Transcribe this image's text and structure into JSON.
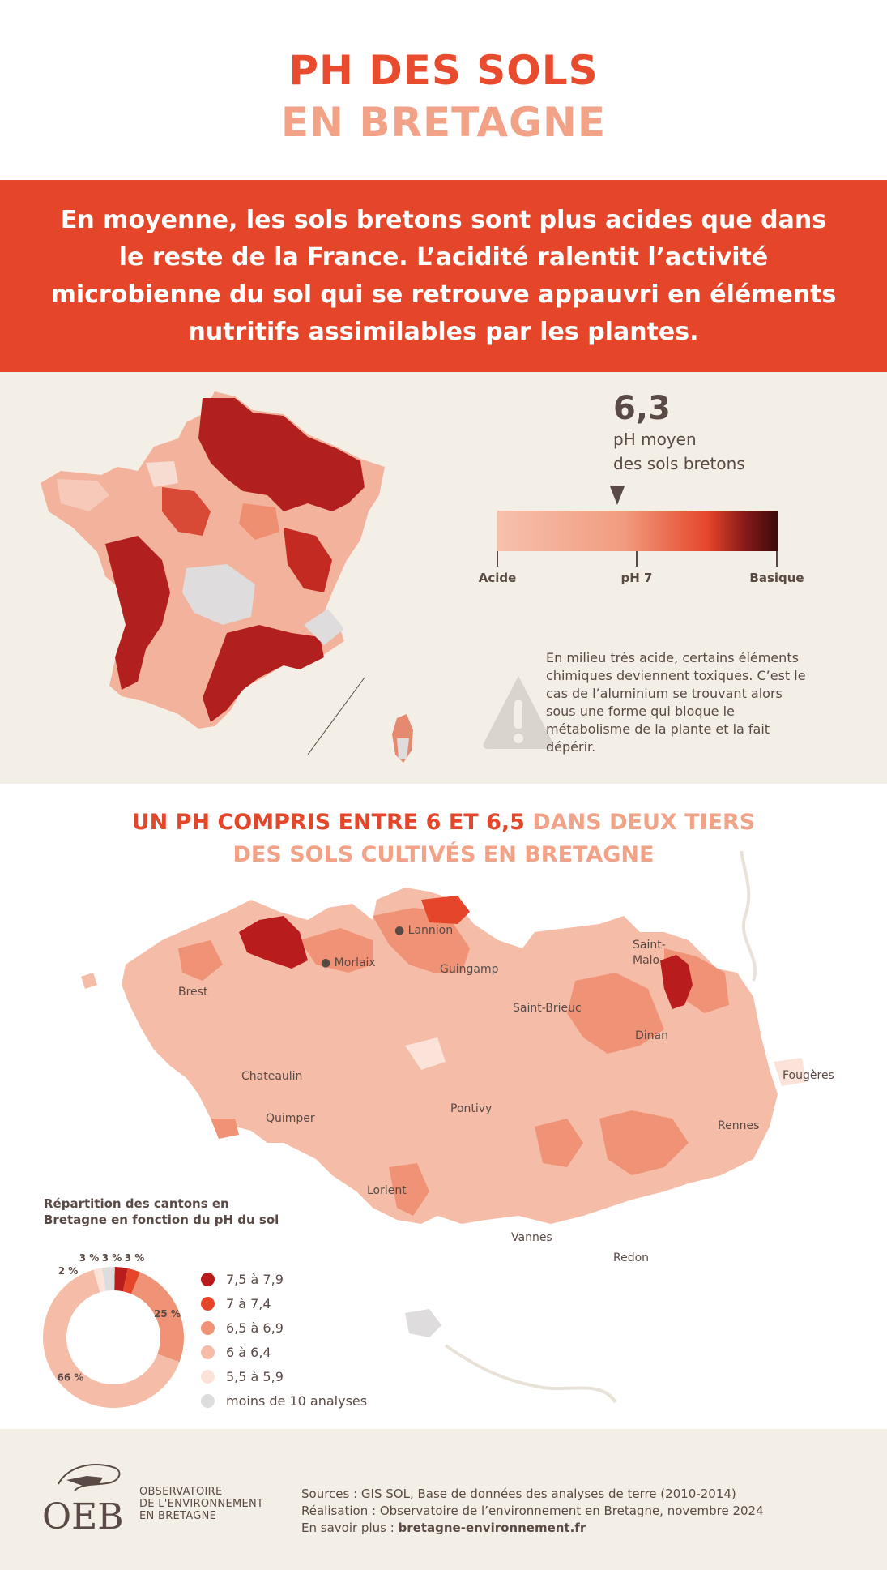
{
  "title": {
    "line1": "PH DES SOLS",
    "line2": "EN BRETAGNE"
  },
  "banner": {
    "text": "En moyenne, les sols bretons sont plus acides que dans le reste de la France. L’acidité ralentit l’activité microbienne du sol qui se retrouve appauvri en éléments nutritifs assimilables par les plantes."
  },
  "ph_scale": {
    "value": "6,3",
    "label_line1": "pH moyen",
    "label_line2": "des sols bretons",
    "tick_left": "Acide",
    "tick_mid": "pH 7",
    "tick_right": "Basique"
  },
  "warning": {
    "text": "En milieu très acide, certains éléments chimiques deviennent toxiques. C’est le cas de l’aluminium se trouvant alors sous une forme qui bloque le métabolisme de la plante et la fait dépérir."
  },
  "section2": {
    "title_red": "UN PH COMPRIS ENTRE 6 ET 6,5",
    "title_salmon_1": " DANS DEUX TIERS",
    "title_salmon_2": "DES SOLS CULTIVÉS EN BRETAGNE"
  },
  "cities": [
    {
      "name": "Lannion"
    },
    {
      "name": "Morlaix"
    },
    {
      "name": "Guingamp"
    },
    {
      "name": "Saint-"
    },
    {
      "name": "Malo"
    },
    {
      "name": "Brest"
    },
    {
      "name": "Saint-Brieuc"
    },
    {
      "name": "Dinan"
    },
    {
      "name": "Chateaulin"
    },
    {
      "name": "Fougères"
    },
    {
      "name": "Pontivy"
    },
    {
      "name": "Quimper"
    },
    {
      "name": "Rennes"
    },
    {
      "name": "Lorient"
    },
    {
      "name": "Vannes"
    },
    {
      "name": "Redon"
    }
  ],
  "chart_data": {
    "type": "pie",
    "title": "Répartition des cantons en Bretagne en fonction du pH du sol",
    "categories": [
      "7,5 à 7,9",
      "7 à 7,4",
      "6,5 à 6,9",
      "6 à 6,4",
      "5,5 à 5,9",
      "moins de 10 analyses"
    ],
    "values": [
      3,
      3,
      25,
      66,
      2,
      3
    ],
    "value_labels": [
      "3 %",
      "3 %",
      "25 %",
      "66 %",
      "2 %",
      "3 %"
    ],
    "colors": [
      "#b81c1c",
      "#e5462a",
      "#ef9275",
      "#f5bca8",
      "#fbe3d9",
      "#dedcdc"
    ],
    "legend_position": "right"
  },
  "footer": {
    "logo_letters": "OEB",
    "logo_line1": "OBSERVATOIRE",
    "logo_line2": "DE L'ENVIRONNEMENT",
    "logo_line3": "EN BRETAGNE",
    "sources": "Sources : GIS SOL, Base de données des analyses de terre (2010-2014)",
    "realisation": "Réalisation : Observatoire de l’environnement en Bretagne, novembre 2024",
    "more_prefix": "En savoir plus : ",
    "more_link": "bretagne-environnement.fr"
  }
}
